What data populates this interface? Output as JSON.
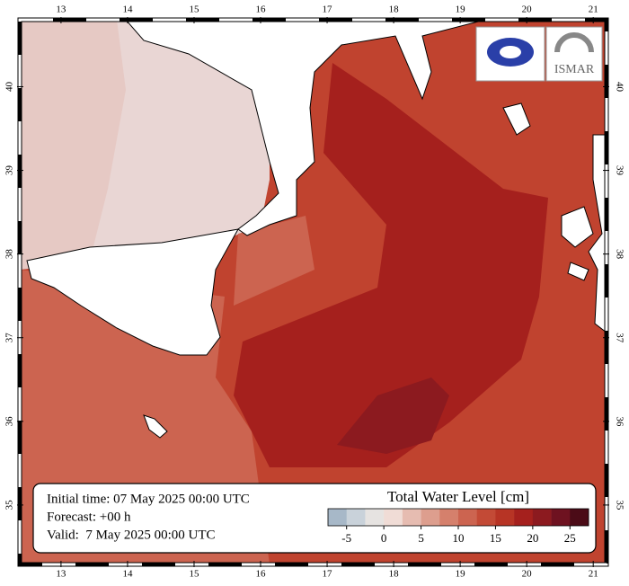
{
  "map": {
    "lon_lim": [
      12.38,
      21.2
    ],
    "lat_lim": [
      34.29,
      40.8
    ],
    "lon_ticks": [
      13,
      14,
      15,
      16,
      17,
      18,
      19,
      20,
      21
    ],
    "lat_ticks": [
      35,
      36,
      37,
      38,
      39,
      40
    ],
    "info": [
      "Initial time: 07 May 2025 00:00 UTC",
      "Forecast: +00 h",
      "Valid:  7 May 2025 00:00 UTC"
    ],
    "logo_text": "ISMAR",
    "colorbar": {
      "title": "Total Water Level [cm]",
      "lim": [
        -7.5,
        27.5
      ],
      "ticks": [
        -5,
        0,
        5,
        10,
        15,
        20,
        25
      ],
      "colors": [
        "#a7b8c8",
        "#c9d2da",
        "#e6e3e1",
        "#f0dcd6",
        "#e6bcb1",
        "#dd9e8e",
        "#d5806c",
        "#cc6450",
        "#c34a36",
        "#b73425",
        "#a5201d",
        "#8c1a1f",
        "#6e1220",
        "#4b0b17"
      ]
    }
  }
}
